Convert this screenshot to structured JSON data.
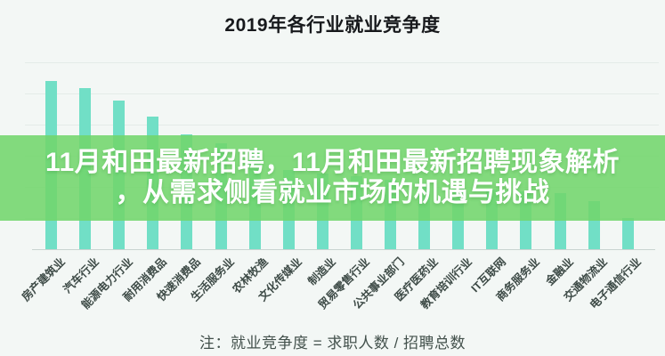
{
  "page": {
    "background": "#f3f7f5"
  },
  "header": {
    "title": "2019年各行业就业竞争度"
  },
  "overlay": {
    "line1": "11月和田最新招聘，11月和田最新招聘现象解析",
    "line2": "，从需求侧看就业市场的机遇与挑战",
    "background_hex": "#71d66b",
    "background_opacity": 0.87,
    "text_color": "#ffffff"
  },
  "note": {
    "text": "注：就业竞争度 = 求职人数 / 招聘总数"
  },
  "colors": {
    "background": "#f3f7f5",
    "bar": "#71dfc6",
    "gridline": "#e4ebe8",
    "axis": "#c9d4d1",
    "xlabel": "#3e4b47",
    "title": "#17191c",
    "note": "#43514c"
  },
  "chart_data": {
    "type": "bar",
    "title": "2019年各行业就业竞争度",
    "note": "注：就业竞争度 = 求职人数 / 招聘总数",
    "categories": [
      "房产建筑业",
      "汽车行业",
      "能源电力行业",
      "耐用消费品",
      "快速消费品",
      "生活服务业",
      "农林牧渔",
      "文化传媒业",
      "制造业",
      "贸易零售行业",
      "公共事业部门",
      "医疗医药业",
      "教育培训行业",
      "IT互联网",
      "商务服务业",
      "金融业",
      "交通物流业",
      "电子通信行业"
    ],
    "values": [
      5.41,
      5.16,
      4.78,
      4.27,
      3.69,
      3.41,
      3.19,
      2.54,
      2.43,
      2.34,
      2.23,
      2.11,
      2.0,
      1.91,
      1.86,
      1.8,
      1.54,
      1.0
    ],
    "xlabel": "",
    "ylabel": "",
    "ylim": [
      0,
      6
    ],
    "grid_step": 1,
    "grid": "on",
    "legend": "none",
    "y_tick_labels_visible": false,
    "x_label_rotation_deg": -45
  }
}
